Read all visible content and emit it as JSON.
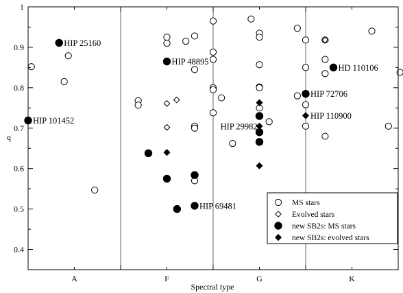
{
  "chart_data": {
    "type": "scatter",
    "xlabel": "Spectral type",
    "ylabel": "q",
    "xlim": [
      0,
      8
    ],
    "ylim": [
      0.35,
      1.0
    ],
    "x_categories": [
      {
        "label": "A",
        "x": 1.0
      },
      {
        "label": "F",
        "x": 3.0
      },
      {
        "label": "G",
        "x": 5.0
      },
      {
        "label": "K",
        "x": 7.0
      }
    ],
    "y_ticks": [
      {
        "label": "0.4",
        "value": 0.4
      },
      {
        "label": "0.5",
        "value": 0.5
      },
      {
        "label": "0.6",
        "value": 0.6
      },
      {
        "label": "0.7",
        "value": 0.7
      },
      {
        "label": "0.8",
        "value": 0.8
      },
      {
        "label": "0.9",
        "value": 0.9
      },
      {
        "label": "1",
        "value": 1.0
      }
    ],
    "legend_position": "bottom-right",
    "series": [
      {
        "name": "MS stars",
        "marker": "open-circle",
        "points": [
          {
            "x": 0.07,
            "y": 0.852
          },
          {
            "x": 0.87,
            "y": 0.879
          },
          {
            "x": 0.78,
            "y": 0.815
          },
          {
            "x": 1.44,
            "y": 0.547
          },
          {
            "x": 2.38,
            "y": 0.768
          },
          {
            "x": 2.38,
            "y": 0.757
          },
          {
            "x": 3.0,
            "y": 0.925
          },
          {
            "x": 3.0,
            "y": 0.91
          },
          {
            "x": 3.41,
            "y": 0.915
          },
          {
            "x": 3.6,
            "y": 0.928
          },
          {
            "x": 3.6,
            "y": 0.845
          },
          {
            "x": 3.6,
            "y": 0.705
          },
          {
            "x": 3.6,
            "y": 0.7
          },
          {
            "x": 3.6,
            "y": 0.57
          },
          {
            "x": 4.0,
            "y": 0.965
          },
          {
            "x": 4.0,
            "y": 0.888
          },
          {
            "x": 4.0,
            "y": 0.87
          },
          {
            "x": 4.0,
            "y": 0.8
          },
          {
            "x": 4.0,
            "y": 0.795
          },
          {
            "x": 4.0,
            "y": 0.738
          },
          {
            "x": 4.18,
            "y": 0.775
          },
          {
            "x": 4.42,
            "y": 0.662
          },
          {
            "x": 4.82,
            "y": 0.97
          },
          {
            "x": 5.0,
            "y": 0.935
          },
          {
            "x": 5.0,
            "y": 0.925
          },
          {
            "x": 5.0,
            "y": 0.857
          },
          {
            "x": 5.0,
            "y": 0.802
          },
          {
            "x": 5.0,
            "y": 0.8
          },
          {
            "x": 5.0,
            "y": 0.75
          },
          {
            "x": 5.0,
            "y": 0.73
          },
          {
            "x": 5.21,
            "y": 0.716
          },
          {
            "x": 5.82,
            "y": 0.947
          },
          {
            "x": 6.0,
            "y": 0.918
          },
          {
            "x": 6.0,
            "y": 0.85
          },
          {
            "x": 5.82,
            "y": 0.78
          },
          {
            "x": 6.0,
            "y": 0.785
          },
          {
            "x": 6.0,
            "y": 0.758
          },
          {
            "x": 6.0,
            "y": 0.705
          },
          {
            "x": 6.42,
            "y": 0.918
          },
          {
            "x": 6.42,
            "y": 0.87
          },
          {
            "x": 6.42,
            "y": 0.835
          },
          {
            "x": 6.42,
            "y": 0.68
          },
          {
            "x": 7.43,
            "y": 0.94
          },
          {
            "x": 7.79,
            "y": 0.705
          },
          {
            "x": 8.04,
            "y": 0.838
          }
        ]
      },
      {
        "name": "Evolved stars",
        "marker": "open-diamond",
        "points": [
          {
            "x": 3.0,
            "y": 0.761
          },
          {
            "x": 3.21,
            "y": 0.77
          },
          {
            "x": 3.0,
            "y": 0.702
          },
          {
            "x": 6.42,
            "y": 0.918
          }
        ]
      },
      {
        "name": "new SB2s: MS stars",
        "marker": "filled-circle",
        "points": [
          {
            "x": 0.0,
            "y": 0.719,
            "label": "HIP 101452"
          },
          {
            "x": 0.67,
            "y": 0.911,
            "label": "HIP 25160"
          },
          {
            "x": 2.6,
            "y": 0.638
          },
          {
            "x": 3.0,
            "y": 0.575
          },
          {
            "x": 3.22,
            "y": 0.5
          },
          {
            "x": 3.0,
            "y": 0.865,
            "label": "HIP 48895"
          },
          {
            "x": 3.6,
            "y": 0.584
          },
          {
            "x": 3.6,
            "y": 0.508,
            "label": "HIP 69481"
          },
          {
            "x": 5.0,
            "y": 0.73
          },
          {
            "x": 5.0,
            "y": 0.69
          },
          {
            "x": 5.0,
            "y": 0.666
          },
          {
            "x": 6.0,
            "y": 0.785,
            "label": "HIP 72706"
          },
          {
            "x": 6.6,
            "y": 0.85,
            "label": "HD 110106"
          }
        ]
      },
      {
        "name": "new SB2s: evolved stars",
        "marker": "filled-diamond",
        "points": [
          {
            "x": 3.0,
            "y": 0.64
          },
          {
            "x": 5.0,
            "y": 0.763
          },
          {
            "x": 5.0,
            "y": 0.705
          },
          {
            "x": 5.0,
            "y": 0.607
          },
          {
            "x": 6.0,
            "y": 0.731,
            "label": "HIP 110900"
          }
        ]
      }
    ],
    "annotations": [
      {
        "text": "HIP 29982",
        "x": 3.95,
        "y": 0.705
      }
    ]
  }
}
